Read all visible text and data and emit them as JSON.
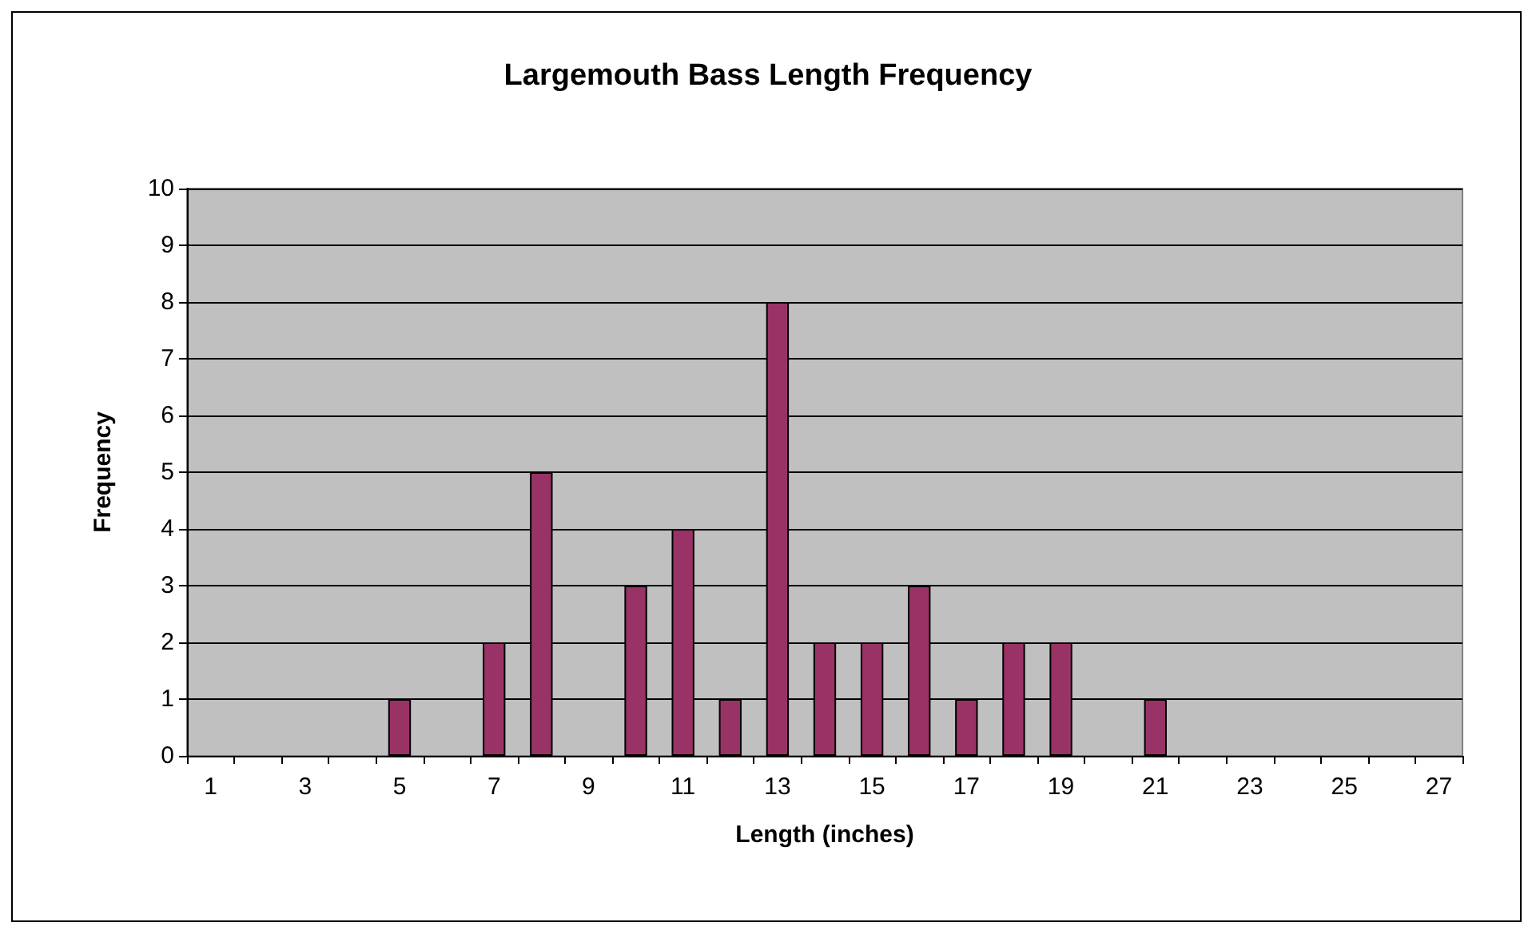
{
  "chart_data": {
    "type": "bar",
    "title": "Largemouth Bass Length Frequency",
    "xlabel": "Length (inches)",
    "ylabel": "Frequency",
    "x": [
      1,
      2,
      3,
      4,
      5,
      6,
      7,
      8,
      9,
      10,
      11,
      12,
      13,
      14,
      15,
      16,
      17,
      18,
      19,
      20,
      21,
      22,
      23,
      24,
      25,
      26,
      27
    ],
    "values": [
      0,
      0,
      0,
      0,
      1,
      0,
      2,
      5,
      0,
      3,
      4,
      1,
      8,
      2,
      2,
      3,
      1,
      2,
      2,
      0,
      1,
      0,
      0,
      0,
      0,
      0,
      0
    ],
    "color": "#993366",
    "xlim": [
      0.5,
      27.5
    ],
    "xticks": [
      {
        "value": 0.5,
        "label": null
      },
      1,
      {
        "value": 1.5,
        "label": null
      },
      {
        "value": 2.5,
        "label": null
      },
      3,
      {
        "value": 3.5,
        "label": null
      },
      {
        "value": 4.5,
        "label": null
      },
      5,
      {
        "value": 5.5,
        "label": null
      },
      {
        "value": 6.5,
        "label": null
      },
      7,
      {
        "value": 7.5,
        "label": null
      },
      {
        "value": 8.5,
        "label": null
      },
      9,
      {
        "value": 9.5,
        "label": null
      },
      {
        "value": 10.5,
        "label": null
      },
      11,
      {
        "value": 11.5,
        "label": null
      },
      {
        "value": 12.5,
        "label": null
      },
      13,
      {
        "value": 13.5,
        "label": null
      },
      {
        "value": 14.5,
        "label": null
      },
      15,
      {
        "value": 15.5,
        "label": null
      },
      {
        "value": 16.5,
        "label": null
      },
      17,
      {
        "value": 17.5,
        "label": null
      },
      {
        "value": 18.5,
        "label": null
      },
      19,
      {
        "value": 19.5,
        "label": null
      },
      {
        "value": 20.5,
        "label": null
      },
      21,
      {
        "value": 21.5,
        "label": null
      },
      {
        "value": 22.5,
        "label": null
      },
      23,
      {
        "value": 23.5,
        "label": null
      },
      {
        "value": 24.5,
        "label": null
      },
      25,
      {
        "value": 25.5,
        "label": null
      },
      {
        "value": 26.5,
        "label": null
      },
      27,
      {
        "value": 27.5,
        "label": null
      }
    ],
    "ylim": [
      0,
      10
    ],
    "yticks": [
      0,
      1,
      2,
      3,
      4,
      5,
      6,
      7,
      8,
      9,
      10
    ],
    "grid": "y"
  }
}
